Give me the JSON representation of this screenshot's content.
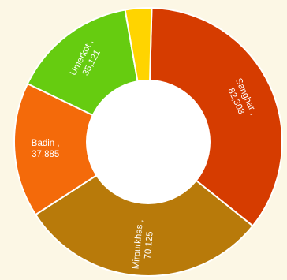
{
  "chart_data": {
    "type": "pie",
    "title": "",
    "subtitle": "",
    "legend": "none",
    "slices": [
      {
        "name": "Sanghar",
        "value": 82303,
        "value_label": "82,303",
        "color": "#d63c00"
      },
      {
        "name": "Mirpurkhas",
        "value": 70125,
        "value_label": "70,125",
        "color": "#b87a0a"
      },
      {
        "name": "Badin",
        "value": 37885,
        "value_label": "37,885",
        "color": "#f46a0a"
      },
      {
        "name": "Umerkot",
        "value": 35121,
        "value_label": "35,121",
        "color": "#66cc10"
      },
      {
        "name": "",
        "value": 7400,
        "value_label": "",
        "color": "#ffd400"
      }
    ],
    "colors": {
      "background": "#fcf7e5",
      "hole": "#ffffff",
      "separator": "#ffffff",
      "label_text": "#ffffff"
    }
  }
}
